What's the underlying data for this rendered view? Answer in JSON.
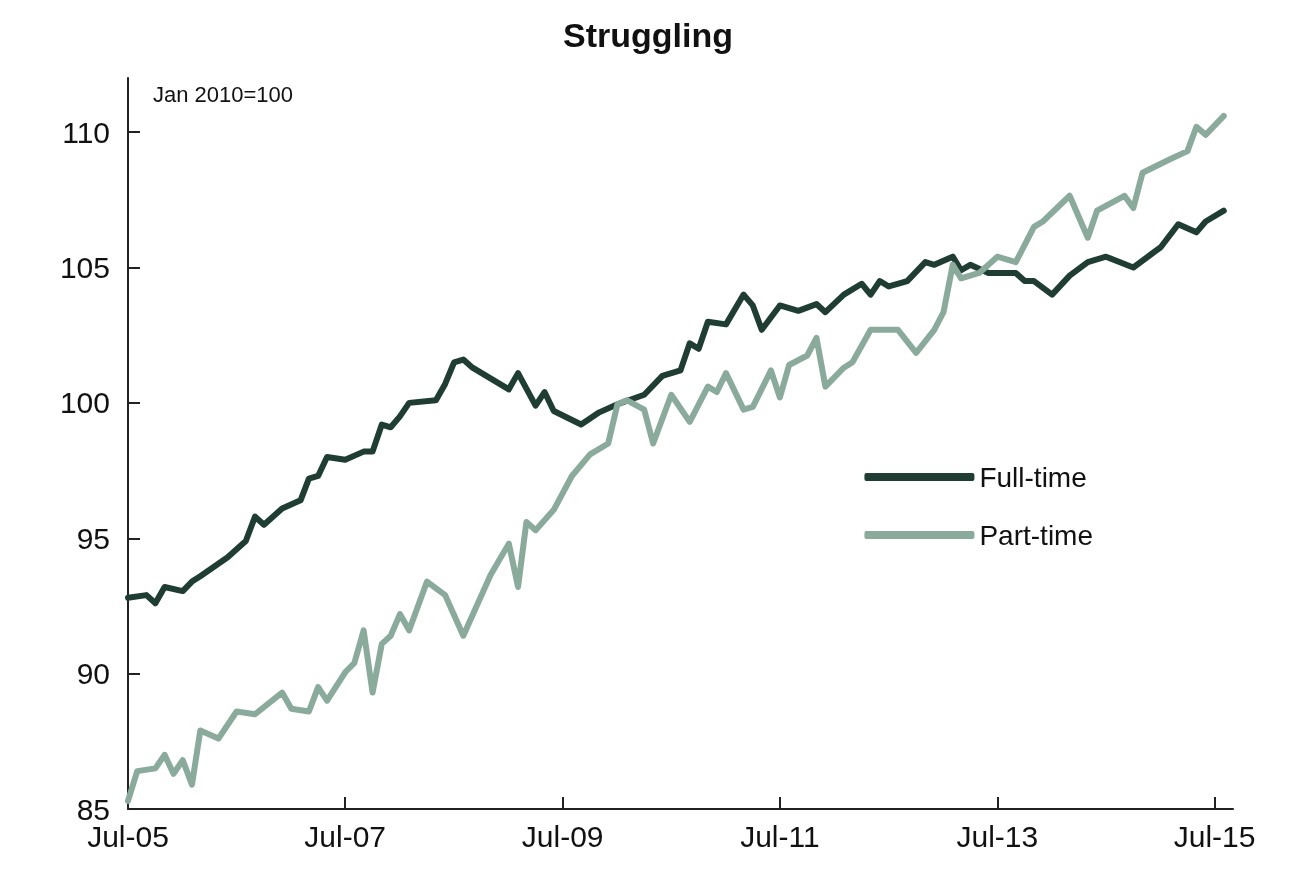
{
  "chart_data": {
    "type": "line",
    "title": "Struggling",
    "annotations": [
      "Jan 2010=100"
    ],
    "series": [
      {
        "name": "Full-time",
        "color": "#1f3d33",
        "x": [
          "2005-07",
          "2005-09",
          "2005-10",
          "2005-11",
          "2006-01",
          "2006-02",
          "2006-03",
          "2006-06",
          "2006-08",
          "2006-09",
          "2006-10",
          "2006-12",
          "2007-02",
          "2007-03",
          "2007-04",
          "2007-05",
          "2007-07",
          "2007-09",
          "2007-10",
          "2007-11",
          "2007-12",
          "2008-01",
          "2008-02",
          "2008-05",
          "2008-06",
          "2008-07",
          "2008-08",
          "2008-09",
          "2009-01",
          "2009-02",
          "2009-04",
          "2009-05",
          "2009-06",
          "2009-09",
          "2009-11",
          "2010-01",
          "2010-04",
          "2010-06",
          "2010-08",
          "2010-09",
          "2010-10",
          "2010-11",
          "2011-01",
          "2011-03",
          "2011-04",
          "2011-05",
          "2011-07",
          "2011-09",
          "2011-11",
          "2011-12",
          "2012-02",
          "2012-04",
          "2012-05",
          "2012-06",
          "2012-07",
          "2012-09",
          "2012-11",
          "2012-12",
          "2013-02",
          "2013-03",
          "2013-04",
          "2013-06",
          "2013-09",
          "2013-10",
          "2013-11",
          "2014-01",
          "2014-03",
          "2014-05",
          "2014-07",
          "2014-10",
          "2014-12",
          "2015-01",
          "2015-03",
          "2015-05",
          "2015-06",
          "2015-08"
        ],
        "values": [
          92.8,
          92.9,
          92.6,
          93.2,
          93.05,
          93.4,
          93.6,
          94.3,
          94.9,
          95.8,
          95.5,
          96.1,
          96.4,
          97.2,
          97.3,
          98.0,
          97.9,
          98.2,
          98.2,
          99.2,
          99.1,
          99.5,
          100.0,
          100.1,
          100.7,
          101.5,
          101.6,
          101.3,
          100.5,
          101.1,
          99.9,
          100.4,
          99.7,
          99.2,
          99.65,
          99.95,
          100.3,
          101.0,
          101.2,
          102.2,
          102.0,
          103.0,
          102.9,
          104.0,
          103.6,
          102.7,
          103.6,
          103.4,
          103.65,
          103.35,
          104.0,
          104.4,
          104.0,
          104.5,
          104.3,
          104.5,
          105.2,
          105.1,
          105.4,
          104.9,
          105.1,
          104.8,
          104.8,
          104.5,
          104.5,
          104.0,
          104.7,
          105.2,
          105.4,
          105.0,
          105.5,
          105.75,
          106.6,
          106.3,
          106.7,
          107.1
        ]
      },
      {
        "name": "Part-time",
        "color": "#8aaa9c",
        "x": [
          "2005-07",
          "2005-08",
          "2005-10",
          "2005-11",
          "2005-12",
          "2006-01",
          "2006-02",
          "2006-03",
          "2006-05",
          "2006-07",
          "2006-09",
          "2006-12",
          "2007-01",
          "2007-03",
          "2007-04",
          "2007-05",
          "2007-07",
          "2007-08",
          "2007-09",
          "2007-10",
          "2007-11",
          "2007-12",
          "2008-01",
          "2008-02",
          "2008-04",
          "2008-06",
          "2008-08",
          "2008-11",
          "2009-01",
          "2009-02",
          "2009-03",
          "2009-04",
          "2009-06",
          "2009-08",
          "2009-10",
          "2009-12",
          "2010-01",
          "2010-02",
          "2010-04",
          "2010-05",
          "2010-07",
          "2010-09",
          "2010-11",
          "2010-12",
          "2011-01",
          "2011-03",
          "2011-04",
          "2011-06",
          "2011-07",
          "2011-08",
          "2011-10",
          "2011-11",
          "2011-12",
          "2012-02",
          "2012-03",
          "2012-05",
          "2012-08",
          "2012-10",
          "2012-12",
          "2013-01",
          "2013-02",
          "2013-03",
          "2013-05",
          "2013-07",
          "2013-09",
          "2013-11",
          "2013-12",
          "2014-03",
          "2014-05",
          "2014-06",
          "2014-09",
          "2014-10",
          "2014-11",
          "2015-02",
          "2015-04",
          "2015-05",
          "2015-06",
          "2015-08"
        ],
        "values": [
          85.3,
          86.4,
          86.5,
          87.0,
          86.3,
          86.8,
          85.9,
          87.9,
          87.6,
          88.6,
          88.5,
          89.3,
          88.7,
          88.6,
          89.5,
          89.0,
          90.05,
          90.4,
          91.6,
          89.3,
          91.1,
          91.4,
          92.2,
          91.6,
          93.4,
          92.9,
          91.4,
          93.65,
          94.8,
          93.2,
          95.6,
          95.3,
          96.05,
          97.3,
          98.1,
          98.5,
          99.95,
          100.1,
          99.75,
          98.5,
          100.3,
          99.3,
          100.6,
          100.4,
          101.1,
          99.75,
          99.85,
          101.2,
          100.2,
          101.4,
          101.75,
          102.4,
          100.6,
          101.3,
          101.5,
          102.7,
          102.7,
          101.85,
          102.7,
          103.35,
          105.1,
          104.6,
          104.8,
          105.4,
          105.2,
          106.5,
          106.7,
          107.65,
          106.1,
          107.1,
          107.65,
          107.2,
          108.5,
          109.0,
          109.3,
          110.2,
          109.9,
          110.6
        ]
      }
    ],
    "xlim": [
      "2005-07",
      "2015-09"
    ],
    "xticks": [
      {
        "value": "2005-07",
        "label": "Jul-05"
      },
      {
        "value": "2007-07",
        "label": "Jul-07"
      },
      {
        "value": "2009-07",
        "label": "Jul-09"
      },
      {
        "value": "2011-07",
        "label": "Jul-11"
      },
      {
        "value": "2013-07",
        "label": "Jul-13"
      },
      {
        "value": "2015-07",
        "label": "Jul-15"
      }
    ],
    "ylim": [
      85,
      112
    ],
    "yticks": [
      85,
      90,
      95,
      100,
      105,
      110
    ],
    "grid": false,
    "legend": "right",
    "marker": "none",
    "line_style": "solid"
  }
}
